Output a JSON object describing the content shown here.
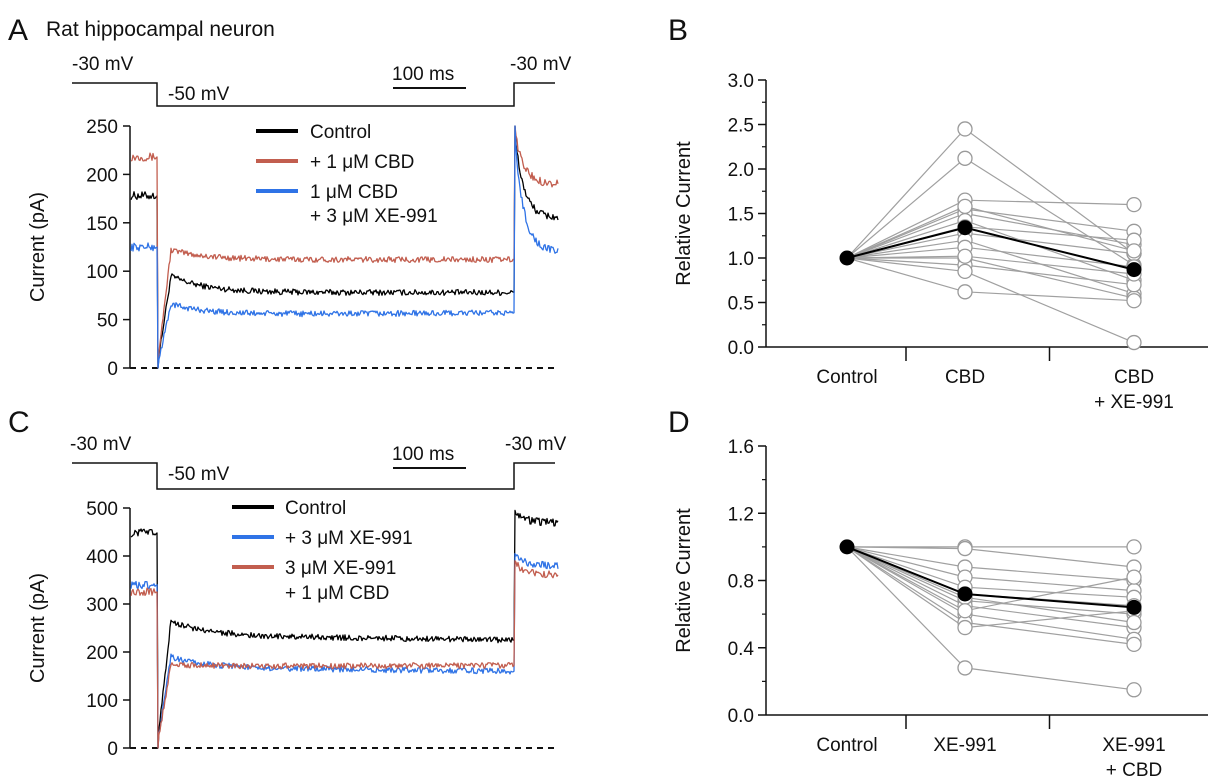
{
  "colors": {
    "control": "#000000",
    "cbd": "#c25e4f",
    "xe": "#2f73e6",
    "individual": "#9a9a9a"
  },
  "panel_A": {
    "letter": "A",
    "subtitle": "Rat hippocampal neuron",
    "v_hold_left": "-30 mV",
    "v_step": "-50 mV",
    "v_hold_right": "-30 mV",
    "scale_bar": "100 ms",
    "legend": [
      "Control",
      "+ 1 μM CBD",
      "1 μM CBD",
      "+ 3 μM XE-991"
    ]
  },
  "panel_B": {
    "letter": "B"
  },
  "panel_C": {
    "letter": "C",
    "v_hold_left": "-30 mV",
    "v_step": "-50 mV",
    "v_hold_right": "-30 mV",
    "scale_bar": "100 ms",
    "legend": [
      "Control",
      "+ 3 μM XE-991",
      "3 μM XE-991",
      "+ 1 μM CBD"
    ]
  },
  "panel_D": {
    "letter": "D"
  },
  "chart_data": [
    {
      "panel": "A",
      "type": "line",
      "ylabel": "Current (pA)",
      "ylim": [
        0,
        250
      ],
      "yticks": [
        "0",
        "50",
        "100",
        "150",
        "200",
        "250"
      ],
      "zero_line": "dashed",
      "series": [
        {
          "name": "Control",
          "color": "#000000",
          "pre_step": 178,
          "peak_after_step": 95,
          "steady": 78,
          "end": 78,
          "post_step_peak": 250,
          "post_step_end": 155
        },
        {
          "name": "+ 1 μM CBD",
          "color": "#c25e4f",
          "pre_step": 218,
          "peak_after_step": 122,
          "steady": 112,
          "end": 112,
          "post_step_peak": 250,
          "post_step_end": 190
        },
        {
          "name": "1 μM CBD + 3 μM XE-991",
          "color": "#2f73e6",
          "pre_step": 125,
          "peak_after_step": 66,
          "steady": 55,
          "end": 57,
          "post_step_peak": 250,
          "post_step_end": 120
        }
      ]
    },
    {
      "panel": "B",
      "type": "scatter",
      "ylabel": "Relative Current",
      "ylim": [
        0,
        3
      ],
      "yticks": [
        "0.0",
        "0.5",
        "1.0",
        "1.5",
        "2.0",
        "2.5",
        "3.0"
      ],
      "categories": [
        "Control",
        "CBD",
        "CBD|+ XE-991"
      ],
      "individual": [
        [
          1,
          2.45,
          1.05
        ],
        [
          1,
          2.12,
          0.92
        ],
        [
          1,
          1.65,
          1.6
        ],
        [
          1,
          1.55,
          1.3
        ],
        [
          1,
          1.5,
          1.15
        ],
        [
          1,
          1.42,
          0.75
        ],
        [
          1,
          1.35,
          1.2
        ],
        [
          1,
          1.28,
          1.05
        ],
        [
          1,
          1.2,
          0.6
        ],
        [
          1,
          1.12,
          0.9
        ],
        [
          1,
          1.0,
          0.55
        ],
        [
          1,
          0.92,
          0.7
        ],
        [
          1,
          0.85,
          0.05
        ],
        [
          1,
          0.62,
          0.52
        ],
        [
          1,
          1.58,
          1.08
        ],
        [
          1,
          1.02,
          0.82
        ]
      ],
      "mean": [
        1.0,
        1.34,
        0.87
      ]
    },
    {
      "panel": "C",
      "type": "line",
      "ylabel": "Current (pA)",
      "ylim": [
        0,
        500
      ],
      "yticks": [
        "0",
        "100",
        "200",
        "300",
        "400",
        "500"
      ],
      "zero_line": "dashed",
      "series": [
        {
          "name": "Control",
          "color": "#000000",
          "pre_step": 448,
          "peak_after_step": 265,
          "steady": 235,
          "end": 225,
          "post_step_peak": 495,
          "post_step_end": 470
        },
        {
          "name": "+ 3 μM XE-991",
          "color": "#2f73e6",
          "pre_step": 340,
          "peak_after_step": 190,
          "steady": 168,
          "end": 160,
          "post_step_peak": 405,
          "post_step_end": 380
        },
        {
          "name": "3 μM XE-991 + 1 μM CBD",
          "color": "#c25e4f",
          "pre_step": 325,
          "peak_after_step": 175,
          "steady": 170,
          "end": 172,
          "post_step_peak": 390,
          "post_step_end": 362
        }
      ]
    },
    {
      "panel": "D",
      "type": "scatter",
      "ylabel": "Relative Current",
      "ylim": [
        0,
        1.6
      ],
      "yticks": [
        "0.0",
        "0.4",
        "0.8",
        "1.2",
        "1.6"
      ],
      "categories": [
        "Control",
        "XE-991",
        "XE-991|+ CBD"
      ],
      "individual": [
        [
          1,
          1.0,
          1.0
        ],
        [
          1,
          0.99,
          0.88
        ],
        [
          1,
          0.88,
          0.8
        ],
        [
          1,
          0.82,
          0.74
        ],
        [
          1,
          0.76,
          0.7
        ],
        [
          1,
          0.72,
          0.65
        ],
        [
          1,
          0.68,
          0.6
        ],
        [
          1,
          0.65,
          0.52
        ],
        [
          1,
          0.6,
          0.45
        ],
        [
          1,
          0.55,
          0.42
        ],
        [
          1,
          0.52,
          0.62
        ],
        [
          1,
          0.28,
          0.15
        ],
        [
          1,
          0.7,
          0.55
        ],
        [
          1,
          0.62,
          0.82
        ]
      ],
      "mean": [
        1.0,
        0.72,
        0.64
      ]
    }
  ]
}
